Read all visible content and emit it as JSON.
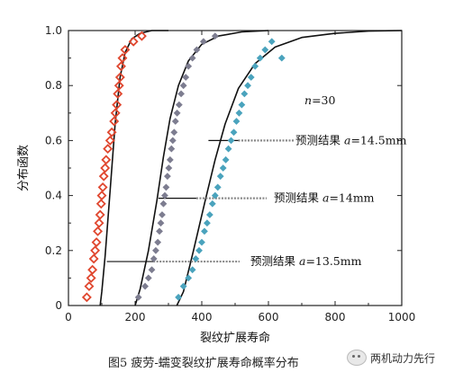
{
  "chart_data": {
    "type": "scatter",
    "xlabel": "裂纹扩展寿命",
    "ylabel": "分布函数",
    "xlim": [
      0,
      1000
    ],
    "ylim": [
      0,
      1.0
    ],
    "x_ticks": [
      "0",
      "200",
      "400",
      "600",
      "800",
      "1000"
    ],
    "y_ticks": [
      "0",
      "0.2",
      "0.4",
      "0.6",
      "0.8",
      "1.0"
    ],
    "grid": false,
    "annotation_n": "n=30",
    "annotations": [
      {
        "prefix": "预测结果 ",
        "var": "a",
        "value": "=14.5mm",
        "target": [
          420,
          0.6
        ]
      },
      {
        "prefix": "预测结果 ",
        "var": "a",
        "value": "=14mm",
        "target": [
          270,
          0.39
        ]
      },
      {
        "prefix": "预测结果 ",
        "var": "a",
        "value": "=13.5mm",
        "target": [
          115,
          0.16
        ]
      }
    ],
    "series": [
      {
        "color": "#e0472f",
        "marker": "diamond-open",
        "x": [
          55,
          62,
          68,
          72,
          76,
          80,
          84,
          88,
          92,
          95,
          98,
          100,
          103,
          106,
          110,
          113,
          118,
          125,
          130,
          137,
          141,
          145,
          148,
          152,
          155,
          158,
          162,
          170,
          195,
          220
        ],
        "y": [
          0.03,
          0.07,
          0.1,
          0.13,
          0.17,
          0.2,
          0.23,
          0.27,
          0.3,
          0.33,
          0.37,
          0.4,
          0.43,
          0.47,
          0.5,
          0.53,
          0.57,
          0.6,
          0.63,
          0.67,
          0.7,
          0.73,
          0.77,
          0.8,
          0.83,
          0.87,
          0.9,
          0.93,
          0.96,
          0.98
        ]
      },
      {
        "color": "#7d7d90",
        "marker": "dot",
        "x": [
          210,
          230,
          240,
          250,
          256,
          262,
          268,
          273,
          277,
          281,
          285,
          289,
          293,
          297,
          301,
          305,
          309,
          313,
          317,
          321,
          326,
          332,
          338,
          345,
          352,
          360,
          372,
          385,
          405,
          440
        ],
        "y": [
          0.03,
          0.07,
          0.1,
          0.13,
          0.17,
          0.2,
          0.23,
          0.27,
          0.3,
          0.33,
          0.37,
          0.4,
          0.43,
          0.47,
          0.5,
          0.53,
          0.57,
          0.6,
          0.63,
          0.67,
          0.7,
          0.73,
          0.77,
          0.8,
          0.83,
          0.87,
          0.9,
          0.93,
          0.96,
          0.98
        ]
      },
      {
        "color": "#4aa3bd",
        "marker": "dot",
        "x": [
          330,
          345,
          360,
          372,
          382,
          392,
          400,
          408,
          416,
          424,
          432,
          440,
          448,
          456,
          464,
          472,
          480,
          488,
          496,
          504,
          512,
          520,
          528,
          538,
          548,
          560,
          575,
          590,
          610,
          640
        ],
        "y": [
          0.03,
          0.07,
          0.1,
          0.13,
          0.17,
          0.2,
          0.23,
          0.27,
          0.3,
          0.33,
          0.37,
          0.4,
          0.43,
          0.47,
          0.5,
          0.53,
          0.57,
          0.6,
          0.63,
          0.67,
          0.7,
          0.73,
          0.77,
          0.8,
          0.83,
          0.87,
          0.9,
          0.93,
          0.96,
          0.9
        ]
      }
    ],
    "curves": [
      {
        "x": [
          95,
          100,
          110,
          125,
          140,
          155,
          170,
          190,
          215,
          250,
          300
        ],
        "y": [
          0.0,
          0.05,
          0.18,
          0.42,
          0.66,
          0.83,
          0.92,
          0.97,
          0.99,
          1.0,
          1.0
        ]
      },
      {
        "x": [
          200,
          215,
          240,
          265,
          285,
          305,
          330,
          360,
          400,
          450,
          520,
          600
        ],
        "y": [
          0.0,
          0.06,
          0.2,
          0.38,
          0.54,
          0.68,
          0.8,
          0.89,
          0.95,
          0.98,
          0.995,
          1.0
        ]
      },
      {
        "x": [
          325,
          345,
          375,
          410,
          440,
          470,
          510,
          560,
          620,
          700,
          800,
          900,
          1000
        ],
        "y": [
          0.0,
          0.05,
          0.2,
          0.38,
          0.53,
          0.66,
          0.79,
          0.88,
          0.94,
          0.975,
          0.99,
          0.998,
          1.0
        ]
      }
    ],
    "caption": "图5  疲劳-蠕变裂纹扩展寿命概率分布",
    "watermark": "两机动力先行"
  }
}
